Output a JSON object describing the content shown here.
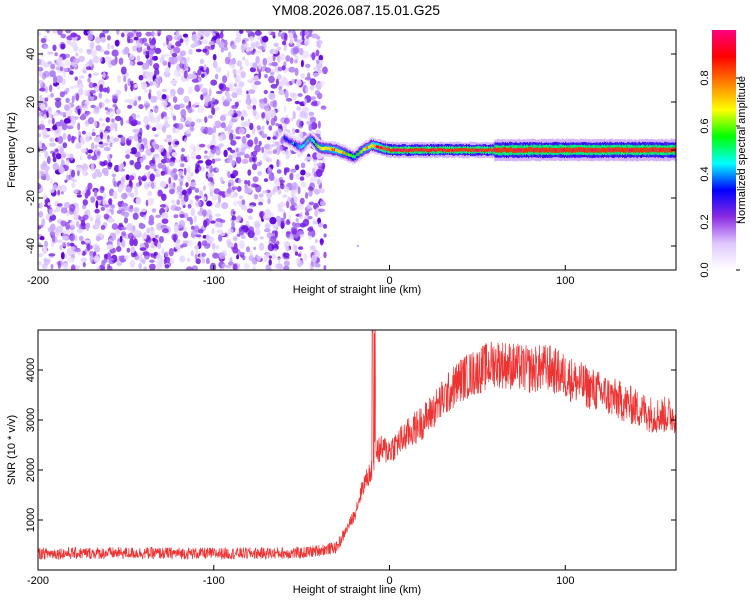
{
  "title": "YM08.2026.087.15.01.G25",
  "chart_data": [
    {
      "type": "heatmap",
      "title": "YM08.2026.087.15.01.G25",
      "xlabel": "Height of straight line (km)",
      "ylabel": "Frequency (Hz)",
      "xlim": [
        -200,
        163
      ],
      "ylim": [
        -50,
        50
      ],
      "xticks": [
        -200,
        -100,
        0,
        100
      ],
      "yticks": [
        -40,
        -20,
        0,
        20,
        40
      ],
      "noise_region_km": [
        -200,
        -40
      ],
      "signal_track": {
        "description": "narrow band near 0 Hz",
        "x": [
          -60,
          -55,
          -50,
          -45,
          -40,
          -30,
          -20,
          -15,
          -10,
          -5,
          0,
          20,
          60,
          100,
          163
        ],
        "freq": [
          5,
          3,
          1,
          5,
          1,
          0,
          -3,
          0,
          2,
          1,
          0,
          0,
          0,
          0,
          0
        ],
        "amplitude": [
          0.35,
          0.3,
          0.45,
          0.4,
          0.65,
          0.7,
          0.5,
          0.65,
          0.7,
          0.8,
          0.85,
          0.85,
          0.85,
          0.85,
          0.85
        ]
      }
    },
    {
      "type": "colorbar",
      "label": "Normalized spectral amplitude",
      "range": [
        0,
        1
      ],
      "ticks": [
        "0.0",
        "0.2",
        "0.4",
        "0.6",
        "0.8"
      ],
      "tick_values": [
        0,
        0.2,
        0.4,
        0.6,
        0.8
      ],
      "colors": [
        "#ffffff",
        "#e0c8ff",
        "#8a2be2",
        "#0000ff",
        "#00ffff",
        "#00ff00",
        "#ffff00",
        "#ff8000",
        "#ff0000",
        "#ff0080"
      ]
    },
    {
      "type": "line",
      "xlabel": "Height of straight line (km)",
      "ylabel": "SNR (10 * v/v)",
      "xlim": [
        -200,
        163
      ],
      "ylim": [
        0,
        4800
      ],
      "xticks": [
        -200,
        -100,
        0,
        100
      ],
      "yticks": [
        1000,
        2000,
        3000,
        4000
      ],
      "series": [
        {
          "name": "SNR",
          "color": "#ee3333",
          "x": [
            -200,
            -150,
            -100,
            -50,
            -30,
            -20,
            -15,
            -10,
            -8,
            0,
            20,
            40,
            60,
            80,
            90,
            110,
            130,
            150,
            163
          ],
          "y": [
            330,
            340,
            330,
            340,
            450,
            1100,
            1700,
            2000,
            2400,
            2400,
            3000,
            3800,
            4150,
            4000,
            4050,
            3700,
            3400,
            3100,
            3100
          ]
        }
      ]
    }
  ]
}
